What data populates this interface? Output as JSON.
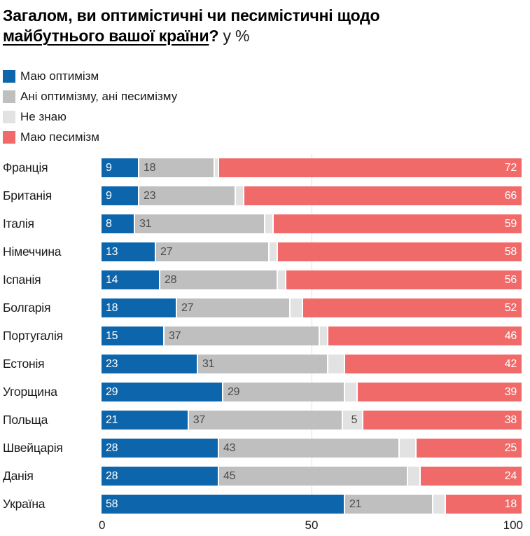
{
  "title": {
    "line1": "Загалом, ви оптимістичні чи песимістичні щодо",
    "line2_underlined": "майбутнього вашої країни",
    "line2_question": "?",
    "suffix": "у %"
  },
  "colors": {
    "optimism": "#0d66ab",
    "neither": "#bfbfbf",
    "dont_know": "#e2e2e2",
    "pessimism": "#f16a6a",
    "gridline": "#e0e0e0",
    "value_dark": "#4b4b4b",
    "value_white": "#ffffff"
  },
  "chart_data": {
    "type": "bar",
    "subtype": "horizontal-stacked",
    "title": "Загалом, ви оптимістичні чи песимістичні щодо майбутнього вашої країни? у %",
    "xlim": [
      0,
      100
    ],
    "x_ticks": [
      "0",
      "50",
      "100"
    ],
    "legend_position": "top",
    "grid": "x-50-only",
    "categories": [
      "Франція",
      "Британія",
      "Італія",
      "Німеччина",
      "Іспанія",
      "Болгарія",
      "Португалія",
      "Естонія",
      "Угорщина",
      "Польща",
      "Швейцарія",
      "Данія",
      "Україна"
    ],
    "series": [
      {
        "name": "Маю оптимізм",
        "color": "#0d66ab",
        "label_align": "left",
        "label_color": "white",
        "label_min_value": 0,
        "values": [
          9,
          9,
          8,
          13,
          14,
          18,
          15,
          23,
          29,
          21,
          28,
          28,
          58
        ]
      },
      {
        "name": "Ані оптимізму, ані песимізму",
        "color": "#bfbfbf",
        "label_align": "left",
        "label_color": "dark",
        "label_min_value": 0,
        "values": [
          18,
          23,
          31,
          27,
          28,
          27,
          37,
          31,
          29,
          37,
          43,
          45,
          21
        ]
      },
      {
        "name": "Не знаю",
        "color": "#e2e2e2",
        "label_align": "right",
        "label_color": "dark",
        "label_min_value": 5,
        "values": [
          1,
          2,
          2,
          2,
          2,
          3,
          2,
          4,
          3,
          5,
          4,
          3,
          3
        ]
      },
      {
        "name": "Маю песимізм",
        "color": "#f16a6a",
        "label_align": "right",
        "label_color": "white",
        "label_min_value": 0,
        "values": [
          72,
          66,
          59,
          58,
          56,
          52,
          46,
          42,
          39,
          38,
          25,
          24,
          18
        ]
      }
    ]
  }
}
